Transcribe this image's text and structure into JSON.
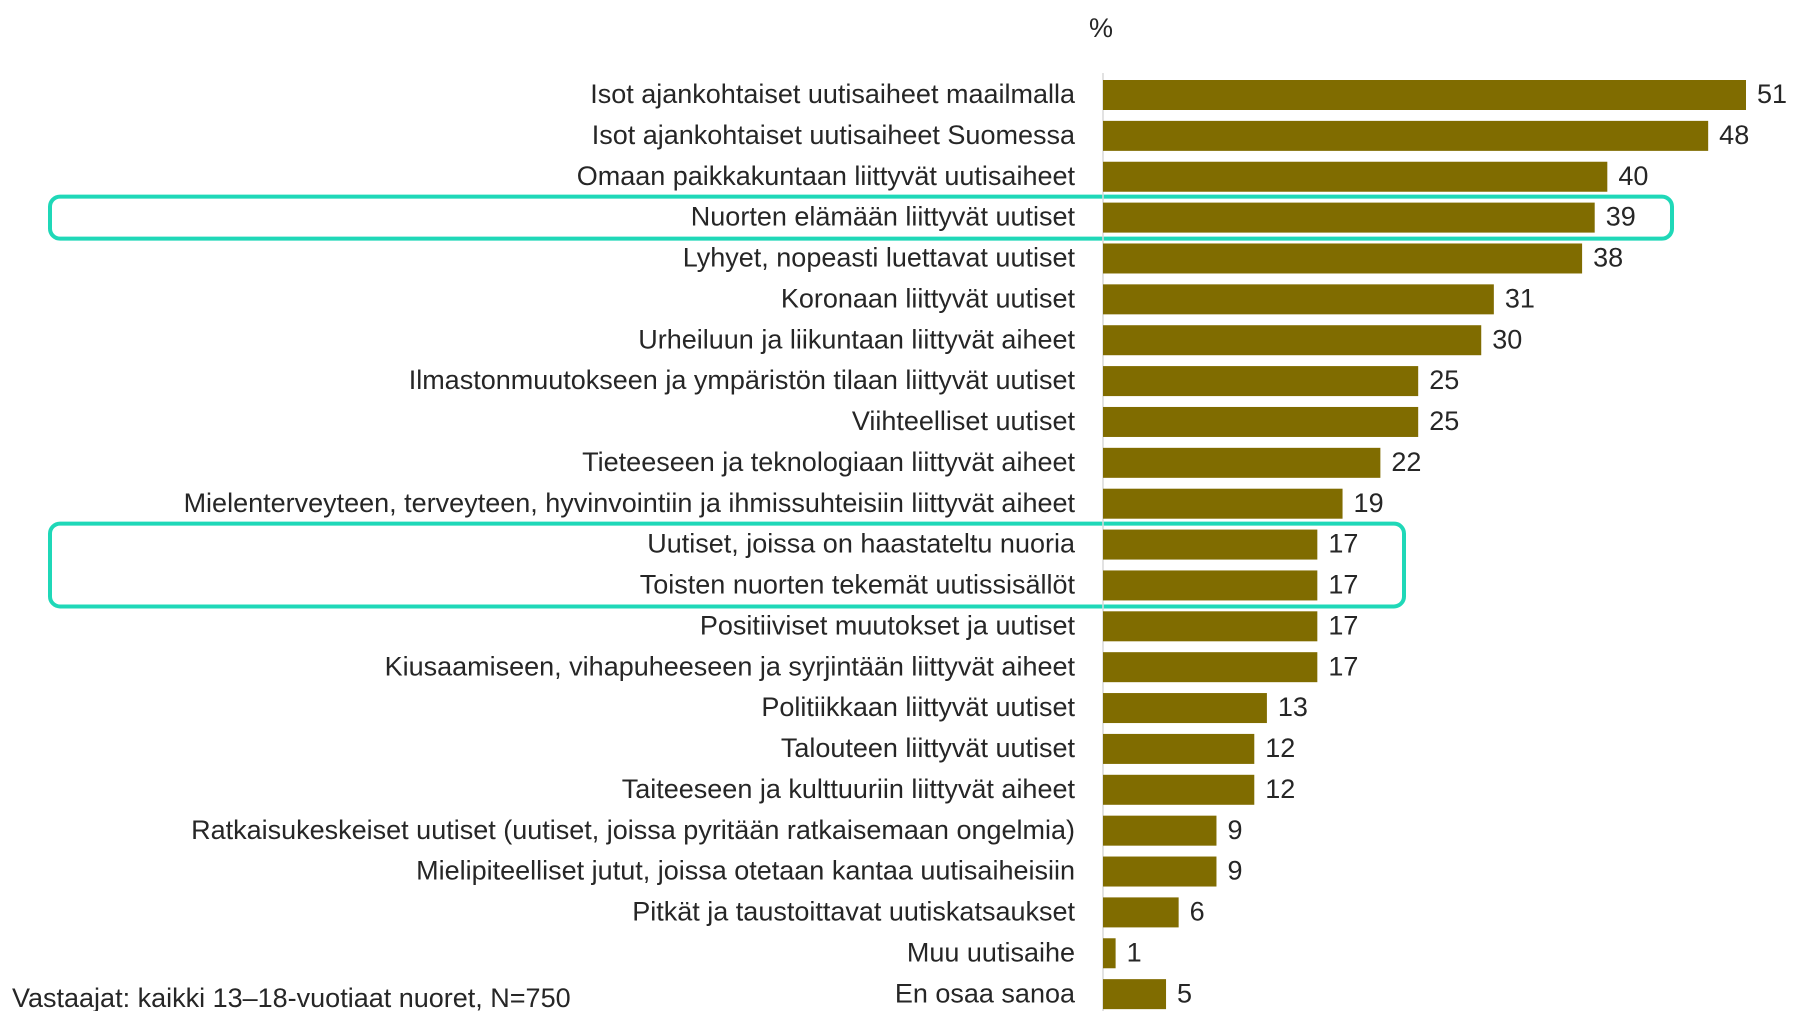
{
  "chart_data": {
    "type": "bar",
    "orientation": "horizontal",
    "axis_label": "%",
    "categories": [
      "Isot ajankohtaiset uutisaiheet maailmalla",
      "Isot ajankohtaiset uutisaiheet Suomessa",
      "Omaan paikkakuntaan liittyvät uutisaiheet",
      "Nuorten elämään liittyvät uutiset",
      "Lyhyet, nopeasti luettavat uutiset",
      "Koronaan liittyvät uutiset",
      "Urheiluun ja liikuntaan liittyvät aiheet",
      "Ilmastonmuutokseen ja ympäristön tilaan liittyvät uutiset",
      "Viihteelliset uutiset",
      "Tieteeseen ja teknologiaan liittyvät aiheet",
      "Mielenterveyteen, terveyteen, hyvinvointiin ja ihmissuhteisiin liittyvät aiheet",
      "Uutiset, joissa on haastateltu nuoria",
      "Toisten nuorten tekemät uutissisällöt",
      "Positiiviset muutokset ja uutiset",
      "Kiusaamiseen, vihapuheeseen ja syrjintään liittyvät aiheet",
      "Politiikkaan liittyvät uutiset",
      "Talouteen liittyvät uutiset",
      "Taiteeseen ja kulttuuriin liittyvät aiheet",
      "Ratkaisukeskeiset uutiset (uutiset, joissa pyritään ratkaisemaan ongelmia)",
      "Mielipiteelliset jutut, joissa otetaan kantaa uutisaiheisiin",
      "Pitkät ja taustoittavat uutiskatsaukset",
      "Muu uutisaihe",
      "En osaa sanoa"
    ],
    "values": [
      51,
      48,
      40,
      39,
      38,
      31,
      30,
      25,
      25,
      22,
      19,
      17,
      17,
      17,
      17,
      13,
      12,
      12,
      9,
      9,
      6,
      1,
      5
    ],
    "color": "#806c00",
    "footnote": "Vastaajat: kaikki 13–18-vuotiaat nuoret, N=750"
  }
}
